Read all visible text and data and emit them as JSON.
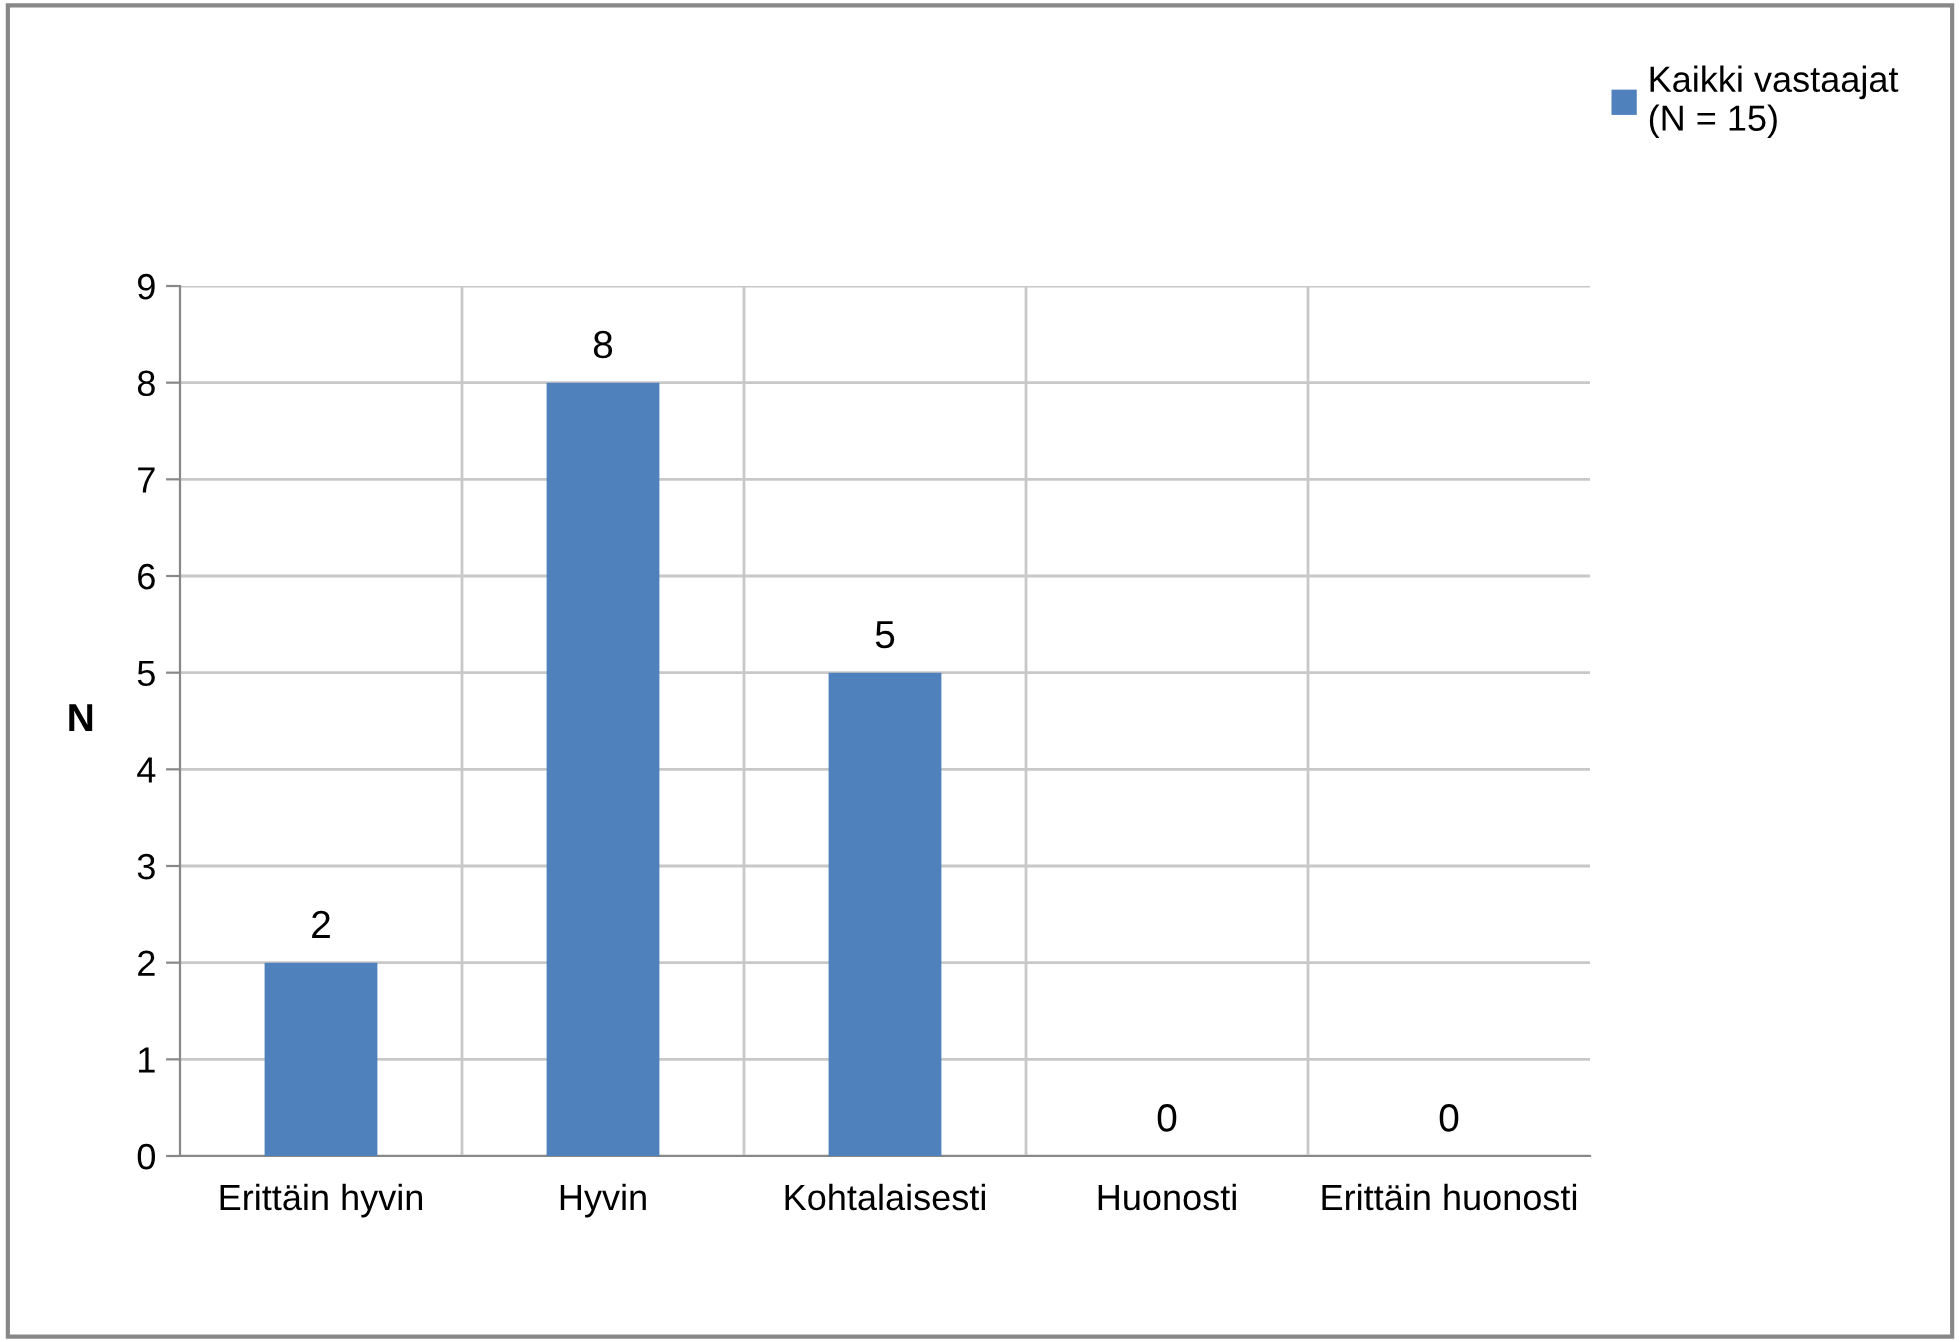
{
  "chart_data": {
    "type": "bar",
    "ylabel": "N",
    "categories": [
      "Erittäin hyvin",
      "Hyvin",
      "Kohtalaisesti",
      "Huonosti",
      "Erittäin huonosti"
    ],
    "series": [
      {
        "name": "Kaikki vastaajat\n(N = 15)",
        "color": "#4f81bd",
        "values": [
          2,
          8,
          5,
          0,
          0
        ]
      }
    ],
    "ylim": [
      0,
      9
    ],
    "yticks": [
      0,
      1,
      2,
      3,
      4,
      5,
      6,
      7,
      8,
      9
    ],
    "grid": true,
    "legend": "top right",
    "data_labels": true
  }
}
